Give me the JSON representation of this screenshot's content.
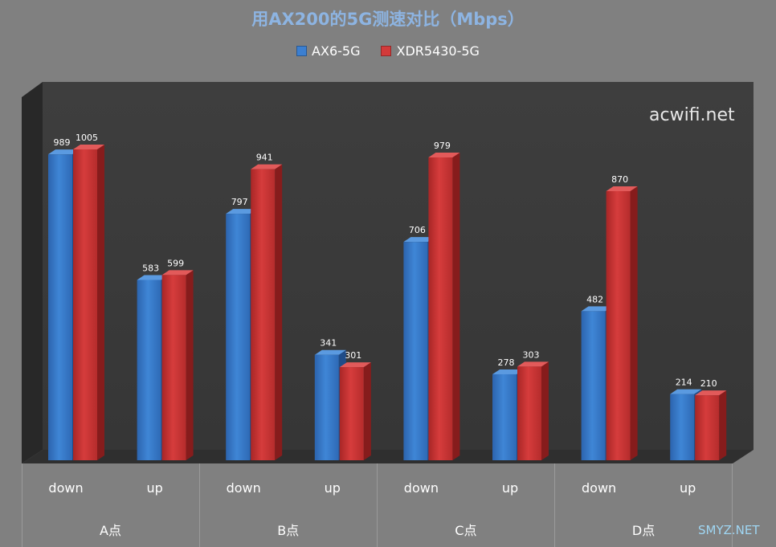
{
  "chart_data": {
    "type": "bar",
    "title": "用AX200的5G测速对比（Mbps）",
    "categories": [
      "down",
      "up",
      "down",
      "up",
      "down",
      "up",
      "down",
      "up"
    ],
    "groups": [
      "A点",
      "B点",
      "C点",
      "D点"
    ],
    "series": [
      {
        "name": "AX6-5G",
        "color": "#3c7fd0",
        "values": [
          989,
          583,
          797,
          341,
          706,
          278,
          482,
          214
        ]
      },
      {
        "name": "XDR5430-5G",
        "color": "#d23a3a",
        "values": [
          1005,
          599,
          941,
          301,
          979,
          303,
          870,
          210
        ]
      }
    ],
    "ylim": [
      0,
      1050
    ],
    "data_labels": true,
    "legend": "top",
    "grid": false,
    "style": "3d-clustered-column"
  },
  "watermark": "acwifi.net",
  "credit": "SMYZ.NET"
}
